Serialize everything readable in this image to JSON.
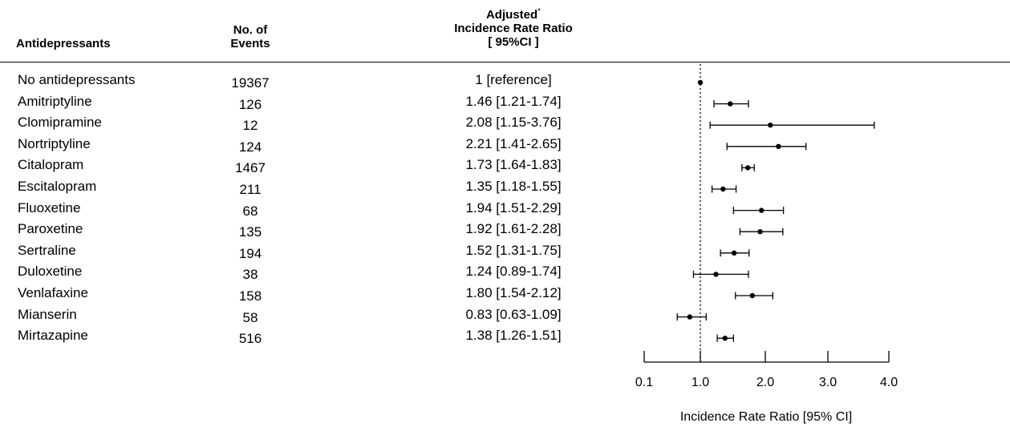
{
  "header": {
    "drug": "Antidepressants",
    "events_line1": "No. of",
    "events_line2": "Events",
    "irr_line1": "Adjusted",
    "irr_sup": "*",
    "irr_line2": "Incidence Rate Ratio",
    "irr_line3": "[ 95%CI ]"
  },
  "chart_data": {
    "type": "forest",
    "xlabel": "Incidence Rate Ratio [95% CI]",
    "reference_line": 1.0,
    "xticks": [
      0.1,
      1.0,
      2.0,
      3.0,
      4.0
    ],
    "xtick_labels": [
      "0.1",
      "1.0",
      "2.0",
      "3.0",
      "4.0"
    ],
    "rows": [
      {
        "name": "No antidepressants",
        "events": "19367",
        "label": "1 [reference]",
        "estimate": 1.0,
        "low": 1.0,
        "high": 1.0
      },
      {
        "name": "Amitriptyline",
        "events": "126",
        "label": "1.46 [1.21-1.74]",
        "estimate": 1.46,
        "low": 1.21,
        "high": 1.74
      },
      {
        "name": "Clomipramine",
        "events": "12",
        "label": "2.08 [1.15-3.76]",
        "estimate": 2.08,
        "low": 1.15,
        "high": 3.76
      },
      {
        "name": "Nortriptyline",
        "events": "124",
        "label": "2.21 [1.41-2.65]",
        "estimate": 2.21,
        "low": 1.41,
        "high": 2.65
      },
      {
        "name": "Citalopram",
        "events": "1467",
        "label": "1.73 [1.64-1.83]",
        "estimate": 1.73,
        "low": 1.64,
        "high": 1.83
      },
      {
        "name": "Escitalopram",
        "events": "211",
        "label": "1.35 [1.18-1.55]",
        "estimate": 1.35,
        "low": 1.18,
        "high": 1.55
      },
      {
        "name": "Fluoxetine",
        "events": "68",
        "label": "1.94 [1.51-2.29]",
        "estimate": 1.94,
        "low": 1.51,
        "high": 2.29
      },
      {
        "name": "Paroxetine",
        "events": "135",
        "label": "1.92 [1.61-2.28]",
        "estimate": 1.92,
        "low": 1.61,
        "high": 2.28
      },
      {
        "name": "Sertraline",
        "events": "194",
        "label": "1.52 [1.31-1.75]",
        "estimate": 1.52,
        "low": 1.31,
        "high": 1.75
      },
      {
        "name": "Duloxetine",
        "events": "38",
        "label": "1.24 [0.89-1.74]",
        "estimate": 1.24,
        "low": 0.89,
        "high": 1.74
      },
      {
        "name": "Venlafaxine",
        "events": "158",
        "label": "1.80 [1.54-2.12]",
        "estimate": 1.8,
        "low": 1.54,
        "high": 2.12
      },
      {
        "name": "Mianserin",
        "events": "58",
        "label": "0.83 [0.63-1.09]",
        "estimate": 0.83,
        "low": 0.63,
        "high": 1.09
      },
      {
        "name": "Mirtazapine",
        "events": "516",
        "label": "1.38 [1.26-1.51]",
        "estimate": 1.38,
        "low": 1.26,
        "high": 1.51
      }
    ]
  }
}
